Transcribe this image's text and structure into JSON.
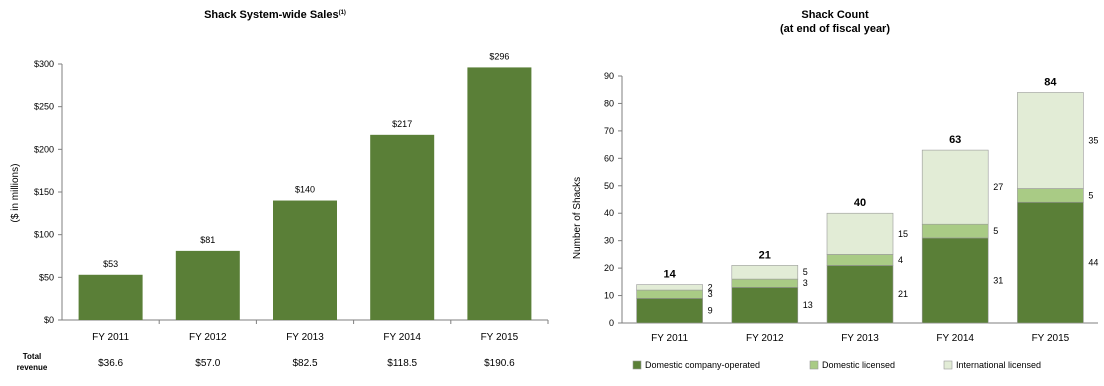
{
  "colors": {
    "dark_green": "#5a7f37",
    "light_green": "#a9cb85",
    "pale_green": "#e2ecd6",
    "axis": "#7f7f7f"
  },
  "chart_data": [
    {
      "type": "bar",
      "title": "Shack System-wide Sales",
      "title_superscript": "(1)",
      "ylabel": "($ in millions)",
      "ylim": [
        0,
        300
      ],
      "y_ticks": [
        0,
        50,
        100,
        150,
        200,
        250,
        300
      ],
      "y_tick_labels": [
        "$0",
        "$50",
        "$100",
        "$150",
        "$200",
        "$250",
        "$300"
      ],
      "categories": [
        "FY 2011",
        "FY 2012",
        "FY 2013",
        "FY 2014",
        "FY 2015"
      ],
      "values": [
        53,
        81,
        140,
        217,
        296
      ],
      "data_labels": [
        "$53",
        "$81",
        "$140",
        "$217",
        "$296"
      ],
      "footer_row": {
        "label_line1": "Total",
        "label_line2": "revenue",
        "values": [
          "$36.6",
          "$57.0",
          "$82.5",
          "$118.5",
          "$190.6"
        ]
      }
    },
    {
      "type": "bar",
      "stacked": true,
      "title_line1": "Shack Count",
      "title_line2": "(at end of fiscal year)",
      "ylabel": "Number of Shacks",
      "ylim": [
        0,
        90
      ],
      "y_ticks": [
        0,
        10,
        20,
        30,
        40,
        50,
        60,
        70,
        80,
        90
      ],
      "categories": [
        "FY 2011",
        "FY 2012",
        "FY 2013",
        "FY 2014",
        "FY 2015"
      ],
      "series": [
        {
          "name": "Domestic company-operated",
          "values": [
            9,
            13,
            21,
            31,
            44
          ]
        },
        {
          "name": "Domestic licensed",
          "values": [
            3,
            3,
            4,
            5,
            5
          ]
        },
        {
          "name": "International licensed",
          "values": [
            2,
            5,
            15,
            27,
            35
          ]
        }
      ],
      "totals": [
        14,
        21,
        40,
        63,
        84
      ],
      "legend_position": "bottom"
    }
  ]
}
